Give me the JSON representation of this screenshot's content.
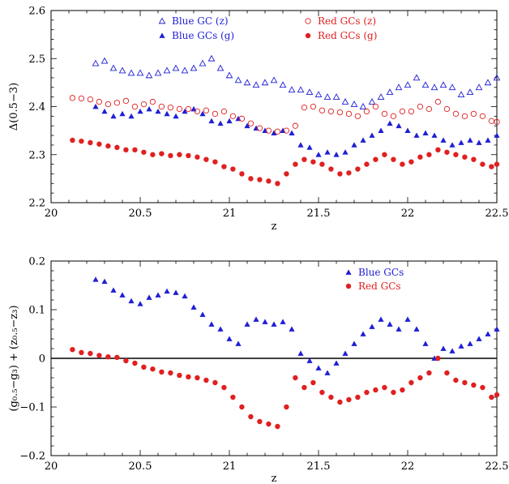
{
  "chart_data": [
    {
      "type": "scatter",
      "xlabel": "z",
      "ylabel": "Δ(0.5−3)",
      "xlim": [
        20,
        22.5
      ],
      "ylim": [
        2.2,
        2.6
      ],
      "xticks": [
        "20",
        "20.5",
        "21",
        "21.5",
        "22",
        "22.5"
      ],
      "yticks": [
        "2.2",
        "2.3",
        "2.4",
        "2.5",
        "2.6"
      ],
      "legend": "top-right",
      "series": [
        {
          "name": "Blue GC (z)",
          "marker": "triangle-open",
          "color": "#1f1fd6",
          "x": [
            20.25,
            20.3,
            20.35,
            20.4,
            20.45,
            20.5,
            20.55,
            20.6,
            20.65,
            20.7,
            20.75,
            20.8,
            20.85,
            20.9,
            20.95,
            21.0,
            21.05,
            21.1,
            21.15,
            21.2,
            21.25,
            21.3,
            21.35,
            21.4,
            21.45,
            21.5,
            21.55,
            21.6,
            21.65,
            21.7,
            21.75,
            21.8,
            21.85,
            21.9,
            21.95,
            22.0,
            22.05,
            22.1,
            22.15,
            22.2,
            22.25,
            22.3,
            22.35,
            22.4,
            22.45,
            22.5
          ],
          "y": [
            2.49,
            2.495,
            2.48,
            2.475,
            2.47,
            2.47,
            2.465,
            2.47,
            2.475,
            2.48,
            2.475,
            2.48,
            2.49,
            2.5,
            2.48,
            2.465,
            2.455,
            2.45,
            2.445,
            2.45,
            2.455,
            2.445,
            2.435,
            2.435,
            2.43,
            2.425,
            2.42,
            2.42,
            2.41,
            2.405,
            2.4,
            2.41,
            2.42,
            2.43,
            2.44,
            2.445,
            2.46,
            2.445,
            2.44,
            2.445,
            2.44,
            2.425,
            2.43,
            2.44,
            2.45,
            2.46
          ]
        },
        {
          "name": "Red GCs (z)",
          "marker": "circle-open",
          "color": "#e02020",
          "x": [
            20.12,
            20.17,
            20.22,
            20.27,
            20.32,
            20.37,
            20.42,
            20.47,
            20.52,
            20.57,
            20.62,
            20.67,
            20.72,
            20.77,
            20.82,
            20.87,
            20.92,
            20.97,
            21.02,
            21.07,
            21.12,
            21.17,
            21.22,
            21.27,
            21.32,
            21.37,
            21.42,
            21.47,
            21.52,
            21.57,
            21.62,
            21.67,
            21.72,
            21.77,
            21.82,
            21.87,
            21.92,
            21.97,
            22.02,
            22.07,
            22.12,
            22.17,
            22.22,
            22.27,
            22.32,
            22.37,
            22.42,
            22.47,
            22.5
          ],
          "y": [
            2.418,
            2.417,
            2.415,
            2.41,
            2.405,
            2.408,
            2.412,
            2.4,
            2.405,
            2.41,
            2.4,
            2.398,
            2.395,
            2.395,
            2.39,
            2.392,
            2.385,
            2.39,
            2.38,
            2.375,
            2.365,
            2.355,
            2.35,
            2.348,
            2.35,
            2.36,
            2.398,
            2.4,
            2.392,
            2.39,
            2.388,
            2.385,
            2.38,
            2.39,
            2.4,
            2.385,
            2.38,
            2.39,
            2.39,
            2.4,
            2.395,
            2.41,
            2.395,
            2.385,
            2.38,
            2.385,
            2.38,
            2.37,
            2.368
          ]
        },
        {
          "name": "Blue GCs (g)",
          "marker": "triangle-filled",
          "color": "#1f1fd6",
          "x": [
            20.25,
            20.3,
            20.35,
            20.4,
            20.45,
            20.5,
            20.55,
            20.6,
            20.65,
            20.7,
            20.75,
            20.8,
            20.85,
            20.9,
            20.95,
            21.0,
            21.05,
            21.1,
            21.15,
            21.2,
            21.25,
            21.3,
            21.35,
            21.4,
            21.45,
            21.5,
            21.55,
            21.6,
            21.65,
            21.7,
            21.75,
            21.8,
            21.85,
            21.9,
            21.95,
            22.0,
            22.05,
            22.1,
            22.15,
            22.2,
            22.25,
            22.3,
            22.35,
            22.4,
            22.45,
            22.5
          ],
          "y": [
            2.4,
            2.39,
            2.38,
            2.385,
            2.38,
            2.39,
            2.395,
            2.39,
            2.385,
            2.38,
            2.39,
            2.395,
            2.385,
            2.37,
            2.365,
            2.37,
            2.375,
            2.36,
            2.355,
            2.35,
            2.345,
            2.35,
            2.345,
            2.32,
            2.315,
            2.3,
            2.305,
            2.3,
            2.305,
            2.32,
            2.33,
            2.34,
            2.35,
            2.365,
            2.36,
            2.35,
            2.34,
            2.345,
            2.34,
            2.33,
            2.32,
            2.325,
            2.33,
            2.325,
            2.33,
            2.34
          ]
        },
        {
          "name": "Red GCs (g)",
          "marker": "circle-filled",
          "color": "#e02020",
          "x": [
            20.12,
            20.17,
            20.22,
            20.27,
            20.32,
            20.37,
            20.42,
            20.47,
            20.52,
            20.57,
            20.62,
            20.67,
            20.72,
            20.77,
            20.82,
            20.87,
            20.92,
            20.97,
            21.02,
            21.07,
            21.12,
            21.17,
            21.22,
            21.27,
            21.32,
            21.37,
            21.42,
            21.47,
            21.52,
            21.57,
            21.62,
            21.67,
            21.72,
            21.77,
            21.82,
            21.87,
            21.92,
            21.97,
            22.02,
            22.07,
            22.12,
            22.17,
            22.22,
            22.27,
            22.32,
            22.37,
            22.42,
            22.47,
            22.5
          ],
          "y": [
            2.33,
            2.328,
            2.325,
            2.322,
            2.318,
            2.315,
            2.31,
            2.31,
            2.305,
            2.3,
            2.302,
            2.298,
            2.3,
            2.298,
            2.295,
            2.29,
            2.285,
            2.275,
            2.27,
            2.26,
            2.25,
            2.248,
            2.245,
            2.24,
            2.26,
            2.28,
            2.29,
            2.285,
            2.28,
            2.27,
            2.26,
            2.262,
            2.27,
            2.28,
            2.29,
            2.3,
            2.29,
            2.28,
            2.285,
            2.295,
            2.3,
            2.31,
            2.305,
            2.3,
            2.295,
            2.29,
            2.28,
            2.275,
            2.28
          ]
        }
      ]
    },
    {
      "type": "scatter",
      "xlabel": "z",
      "ylabel": "(g₀.₅−g₃) + (z₀.₅−z₃)",
      "xlim": [
        20,
        22.5
      ],
      "ylim": [
        -0.2,
        0.2
      ],
      "xticks": [
        "20",
        "20.5",
        "21",
        "21.5",
        "22",
        "22.5"
      ],
      "yticks": [
        "−0.2",
        "−0.1",
        "0",
        "0.1",
        "0.2"
      ],
      "zero_line": 0,
      "legend": "top-right",
      "series": [
        {
          "name": "Blue GCs",
          "marker": "triangle-filled",
          "color": "#1f1fd6",
          "x": [
            20.25,
            20.3,
            20.35,
            20.4,
            20.45,
            20.5,
            20.55,
            20.6,
            20.65,
            20.7,
            20.75,
            20.8,
            20.85,
            20.9,
            20.95,
            21.0,
            21.05,
            21.1,
            21.15,
            21.2,
            21.25,
            21.3,
            21.35,
            21.4,
            21.45,
            21.5,
            21.55,
            21.6,
            21.65,
            21.7,
            21.75,
            21.8,
            21.85,
            21.9,
            21.95,
            22.0,
            22.05,
            22.1,
            22.15,
            22.2,
            22.25,
            22.3,
            22.35,
            22.4,
            22.45,
            22.5
          ],
          "y": [
            0.162,
            0.158,
            0.14,
            0.13,
            0.118,
            0.112,
            0.125,
            0.13,
            0.138,
            0.135,
            0.128,
            0.105,
            0.09,
            0.07,
            0.06,
            0.04,
            0.03,
            0.07,
            0.08,
            0.075,
            0.07,
            0.075,
            0.06,
            0.01,
            -0.005,
            -0.02,
            -0.03,
            -0.01,
            0.01,
            0.03,
            0.05,
            0.065,
            0.08,
            0.07,
            0.06,
            0.08,
            0.06,
            0.03,
            0.0,
            0.02,
            0.015,
            0.025,
            0.03,
            0.04,
            0.05,
            0.06
          ]
        },
        {
          "name": "Red GCs",
          "marker": "circle-filled",
          "color": "#e02020",
          "x": [
            20.12,
            20.17,
            20.22,
            20.27,
            20.32,
            20.37,
            20.42,
            20.47,
            20.52,
            20.57,
            20.62,
            20.67,
            20.72,
            20.77,
            20.82,
            20.87,
            20.92,
            20.97,
            21.02,
            21.07,
            21.12,
            21.17,
            21.22,
            21.27,
            21.32,
            21.37,
            21.42,
            21.47,
            21.52,
            21.57,
            21.62,
            21.67,
            21.72,
            21.77,
            21.82,
            21.87,
            21.92,
            21.97,
            22.02,
            22.07,
            22.12,
            22.17,
            22.22,
            22.27,
            22.32,
            22.37,
            22.42,
            22.47,
            22.5
          ],
          "y": [
            0.018,
            0.012,
            0.01,
            0.006,
            0.003,
            0.002,
            -0.005,
            -0.01,
            -0.018,
            -0.022,
            -0.028,
            -0.03,
            -0.035,
            -0.038,
            -0.04,
            -0.045,
            -0.05,
            -0.06,
            -0.08,
            -0.1,
            -0.12,
            -0.13,
            -0.135,
            -0.14,
            -0.1,
            -0.04,
            -0.06,
            -0.05,
            -0.07,
            -0.08,
            -0.09,
            -0.085,
            -0.08,
            -0.07,
            -0.065,
            -0.06,
            -0.07,
            -0.065,
            -0.05,
            -0.04,
            -0.03,
            0.0,
            -0.03,
            -0.045,
            -0.05,
            -0.055,
            -0.06,
            -0.08,
            -0.075
          ]
        }
      ]
    }
  ]
}
